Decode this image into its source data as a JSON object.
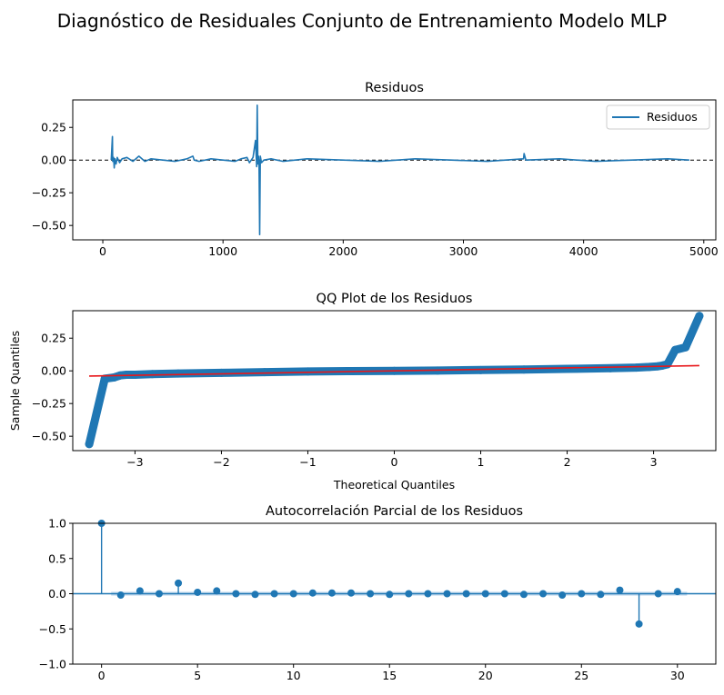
{
  "suptitle": "Diagnóstico de Residuales Conjunto de Entrenamiento Modelo MLP",
  "colors": {
    "series": "#1f77b4",
    "fit_line": "#e8171a",
    "zero_line": "#000000",
    "axis": "#000000",
    "conf_band": "#bcd4ea"
  },
  "chart_data": [
    {
      "type": "line",
      "title": "Residuos",
      "xlabel": "",
      "ylabel": "",
      "xlim": [
        -250,
        5100
      ],
      "ylim": [
        -0.61,
        0.46
      ],
      "xticks": [
        0,
        1000,
        2000,
        3000,
        4000,
        5000
      ],
      "xtick_labels": [
        "0",
        "1000",
        "2000",
        "3000",
        "4000",
        "5000"
      ],
      "yticks": [
        0.25,
        0.0,
        -0.25,
        -0.5
      ],
      "ytick_labels": [
        "0.25",
        "0.00",
        "−0.25",
        "−0.50"
      ],
      "reference_line": {
        "y": 0,
        "style": "dashed"
      },
      "legend": {
        "position": "top-right",
        "entries": [
          "Residuos"
        ]
      },
      "series": [
        {
          "name": "Residuos",
          "x": [
            70,
            80,
            82,
            90,
            95,
            100,
            110,
            120,
            140,
            160,
            200,
            250,
            300,
            350,
            400,
            500,
            600,
            700,
            750,
            760,
            800,
            900,
            1000,
            1100,
            1150,
            1200,
            1220,
            1250,
            1270,
            1280,
            1285,
            1290,
            1295,
            1300,
            1305,
            1310,
            1320,
            1340,
            1400,
            1500,
            1700,
            2000,
            2300,
            2600,
            2900,
            3200,
            3500,
            3505,
            3520,
            3800,
            4100,
            4400,
            4700,
            4880
          ],
          "y": [
            0.0,
            0.18,
            -0.01,
            0.02,
            -0.06,
            0.01,
            -0.03,
            0.02,
            -0.02,
            0.01,
            0.02,
            -0.01,
            0.03,
            -0.01,
            0.01,
            0.0,
            -0.01,
            0.01,
            0.03,
            0.0,
            -0.01,
            0.01,
            0.0,
            -0.01,
            0.01,
            0.02,
            -0.02,
            0.02,
            0.15,
            -0.05,
            0.42,
            -0.03,
            0.03,
            -0.03,
            -0.57,
            0.03,
            -0.02,
            0.0,
            0.01,
            -0.01,
            0.01,
            0.0,
            -0.01,
            0.01,
            0.0,
            -0.01,
            0.01,
            0.05,
            0.0,
            0.01,
            -0.01,
            0.0,
            0.01,
            0.0
          ]
        }
      ]
    },
    {
      "type": "scatter",
      "title": "QQ Plot de los Residuos",
      "xlabel": "Theoretical Quantiles",
      "ylabel": "Sample Quantiles",
      "xlim": [
        -3.72,
        3.72
      ],
      "ylim": [
        -0.61,
        0.46
      ],
      "xticks": [
        -3,
        -2,
        -1,
        0,
        1,
        2,
        3
      ],
      "xtick_labels": [
        "−3",
        "−2",
        "−1",
        "0",
        "1",
        "2",
        "3"
      ],
      "yticks": [
        0.25,
        0.0,
        -0.25,
        -0.5
      ],
      "ytick_labels": [
        "0.25",
        "0.00",
        "−0.25",
        "−0.50"
      ],
      "points": {
        "x": [
          -3.53,
          -3.35,
          -3.24,
          -3.17,
          -3.1,
          -3.0,
          -2.8,
          -2.5,
          -2.0,
          -1.5,
          -1.0,
          -0.5,
          0.0,
          0.5,
          1.0,
          1.5,
          2.0,
          2.5,
          2.8,
          2.95,
          3.05,
          3.1,
          3.16,
          3.25,
          3.37,
          3.53
        ],
        "y": [
          -0.56,
          -0.06,
          -0.05,
          -0.035,
          -0.03,
          -0.03,
          -0.025,
          -0.02,
          -0.015,
          -0.01,
          -0.005,
          -0.002,
          0.0,
          0.002,
          0.006,
          0.01,
          0.015,
          0.02,
          0.025,
          0.03,
          0.035,
          0.04,
          0.05,
          0.16,
          0.18,
          0.42
        ]
      },
      "fit_line": {
        "x": [
          -3.53,
          3.53
        ],
        "y": [
          -0.04,
          0.04
        ]
      }
    },
    {
      "type": "bar",
      "title": "Autocorrelación Parcial de los Residuos",
      "xlabel": "",
      "ylabel": "",
      "xlim": [
        -1.5,
        32
      ],
      "ylim": [
        -1.0,
        1.0
      ],
      "xticks": [
        0,
        5,
        10,
        15,
        20,
        25,
        30
      ],
      "xtick_labels": [
        "0",
        "5",
        "10",
        "15",
        "20",
        "25",
        "30"
      ],
      "yticks": [
        1.0,
        0.5,
        0.0,
        -0.5,
        -1.0
      ],
      "ytick_labels": [
        "1.0",
        "0.5",
        "0.0",
        "−0.5",
        "−1.0"
      ],
      "confidence_band": 0.028,
      "lags": [
        0,
        1,
        2,
        3,
        4,
        5,
        6,
        7,
        8,
        9,
        10,
        11,
        12,
        13,
        14,
        15,
        16,
        17,
        18,
        19,
        20,
        21,
        22,
        23,
        24,
        25,
        26,
        27,
        28,
        29,
        30
      ],
      "values": [
        1.0,
        -0.02,
        0.04,
        0.0,
        0.15,
        0.02,
        0.04,
        0.0,
        -0.01,
        0.0,
        0.0,
        0.01,
        0.01,
        0.01,
        0.0,
        -0.01,
        0.0,
        0.0,
        0.0,
        0.0,
        0.0,
        0.0,
        -0.01,
        0.0,
        -0.02,
        0.0,
        -0.01,
        0.05,
        -0.43,
        0.0,
        0.03
      ]
    }
  ]
}
